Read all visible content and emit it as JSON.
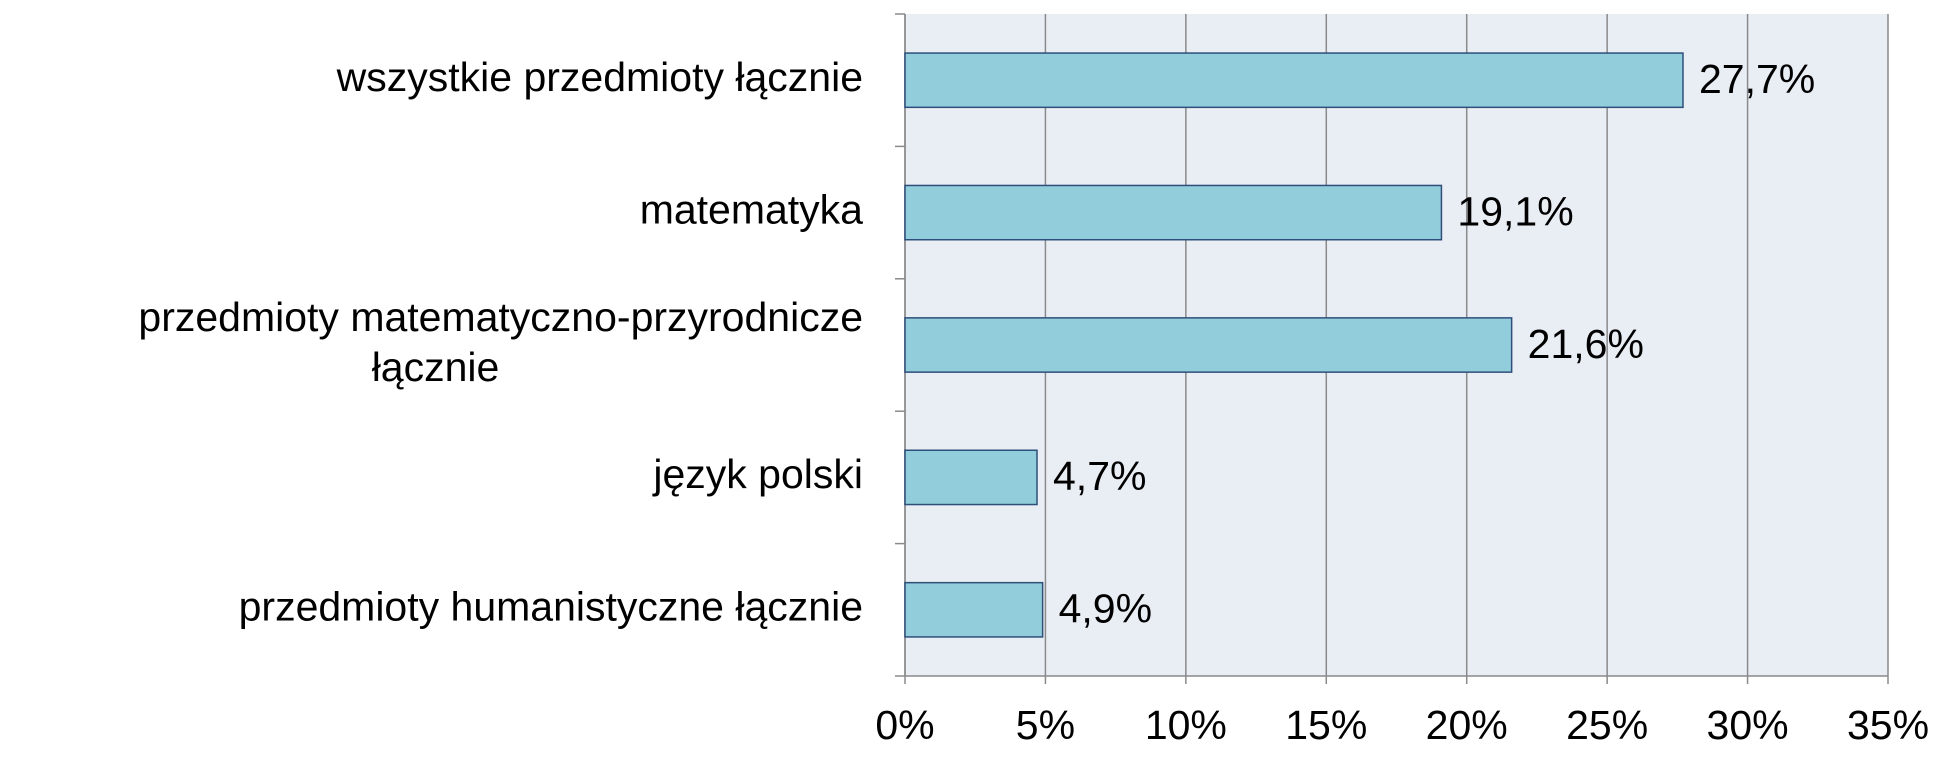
{
  "chart_data": {
    "type": "bar",
    "orientation": "horizontal",
    "categories": [
      "wszystkie przedmioty łącznie",
      "matematyka",
      "przedmioty matematyczno-przyrodnicze łącznie",
      "język polski",
      "przedmioty humanistyczne łącznie"
    ],
    "values": [
      27.7,
      19.1,
      21.6,
      4.7,
      4.9
    ],
    "value_labels": [
      "27,7%",
      "19,1%",
      "21,6%",
      "4,7%",
      "4,9%"
    ],
    "color": "#92cddc",
    "edge_color": "#2e4f7a",
    "xlim": [
      0,
      35
    ],
    "xticks": [
      {
        "value": 0,
        "label": "0%"
      },
      {
        "value": 5,
        "label": "5%"
      },
      {
        "value": 10,
        "label": "10%"
      },
      {
        "value": 15,
        "label": "15%"
      },
      {
        "value": 20,
        "label": "20%"
      },
      {
        "value": 25,
        "label": "25%"
      },
      {
        "value": 30,
        "label": "30%"
      },
      {
        "value": 35,
        "label": "35%"
      }
    ],
    "grid": true
  }
}
